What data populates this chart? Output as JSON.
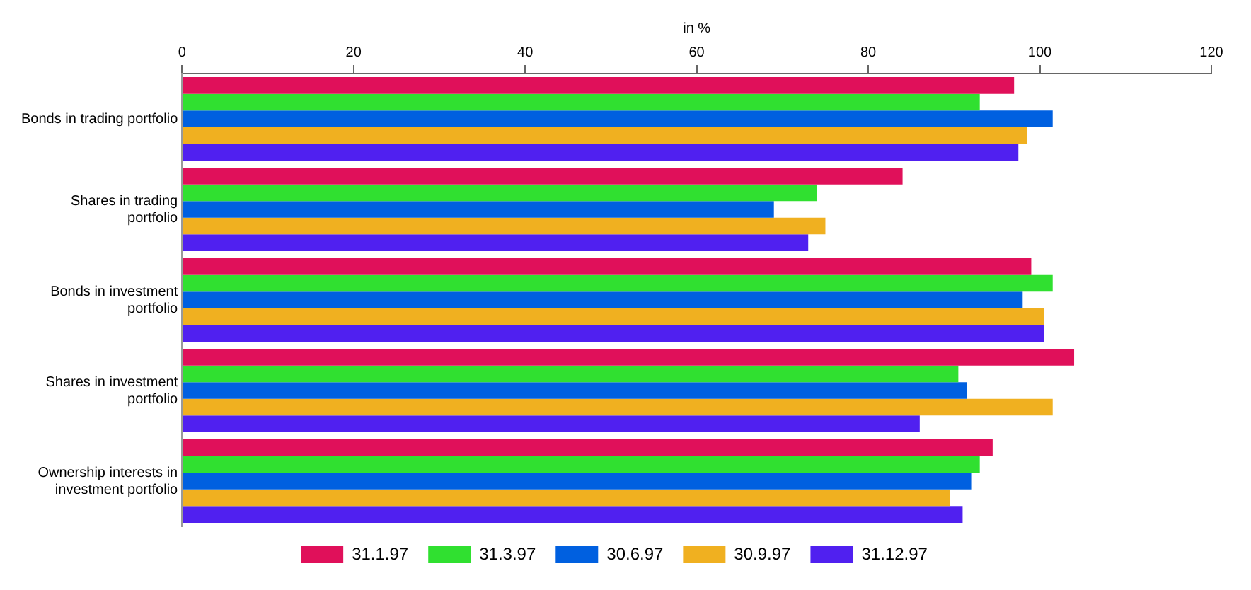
{
  "chart_data": {
    "type": "bar",
    "orientation": "horizontal",
    "xlabel": "in %",
    "categories": [
      "Bonds in trading portfolio",
      "Shares in trading portfolio",
      "Bonds in investment portfolio",
      "Shares in investment portfolio",
      "Ownership interests in investment portfolio"
    ],
    "series": [
      {
        "name": "31.1.97",
        "color": "#e0105a",
        "values": [
          97,
          84,
          99,
          104,
          94.5
        ]
      },
      {
        "name": "31.3.97",
        "color": "#30e030",
        "values": [
          93,
          74,
          101.5,
          90.5,
          93
        ]
      },
      {
        "name": "30.6.97",
        "color": "#0060e0",
        "values": [
          101.5,
          69,
          98,
          91.5,
          92
        ]
      },
      {
        "name": "30.9.97",
        "color": "#f0b020",
        "values": [
          98.5,
          75,
          100.5,
          101.5,
          89.5
        ]
      },
      {
        "name": "31.12.97",
        "color": "#5020f0",
        "values": [
          97.5,
          73,
          100.5,
          86,
          91
        ]
      }
    ],
    "xlim": [
      0,
      120
    ],
    "xticks": [
      0,
      20,
      40,
      60,
      80,
      100,
      120
    ],
    "grid": false,
    "legend": "bottom"
  }
}
